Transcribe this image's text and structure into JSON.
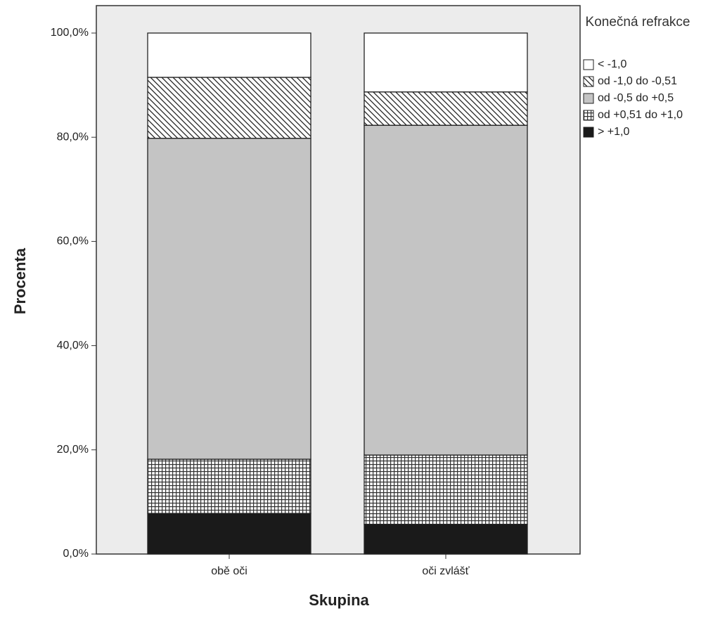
{
  "chart_data": {
    "type": "bar",
    "stacked": true,
    "x_label": "Skupina",
    "y_label": "Procenta",
    "legend_title": "Konečná refrakce",
    "legend_position": "right",
    "categories": [
      "obě oči",
      "oči zvlášť"
    ],
    "series": [
      {
        "name": "> +1,0",
        "color": "#1a1a1a",
        "pattern": "solid",
        "values": [
          7.8,
          5.7
        ]
      },
      {
        "name": "od +0,51 do +1,0",
        "color": "#ffffff",
        "pattern": "grid",
        "values": [
          10.4,
          13.3
        ]
      },
      {
        "name": "od -0,5 do +0,5",
        "color": "#c4c4c4",
        "pattern": "solid",
        "values": [
          61.6,
          63.3
        ]
      },
      {
        "name": "od -1,0 do -0,51",
        "color": "#ffffff",
        "pattern": "diagonal",
        "values": [
          11.7,
          6.4
        ]
      },
      {
        "name": "< -1,0",
        "color": "#ffffff",
        "pattern": "solid",
        "values": [
          8.5,
          11.3
        ]
      }
    ],
    "ylim": [
      0,
      100
    ],
    "yticks": [
      {
        "value": 0,
        "label": "0,0%"
      },
      {
        "value": 20,
        "label": "20,0%"
      },
      {
        "value": 40,
        "label": "40,0%"
      },
      {
        "value": 60,
        "label": "60,0%"
      },
      {
        "value": 80,
        "label": "80,0%"
      },
      {
        "value": 100,
        "label": "100,0%"
      }
    ]
  }
}
